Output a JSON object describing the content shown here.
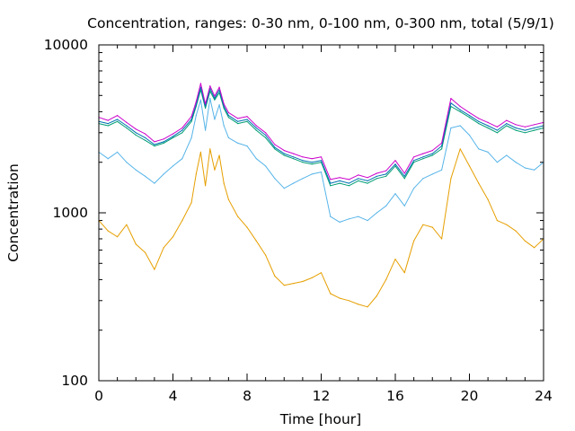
{
  "chart_data": {
    "type": "line",
    "title": "Concentration, ranges: 0-30 nm, 0-100 nm, 0-300 nm, total (5/9/1)",
    "xlabel": "Time [hour]",
    "ylabel": "Concentration",
    "xlim": [
      0,
      24
    ],
    "ylim": [
      100,
      10000
    ],
    "yscale": "log",
    "x_ticks": [
      0,
      4,
      8,
      12,
      16,
      20,
      24
    ],
    "x_tick_labels": [
      "0",
      "4",
      "8",
      "12",
      "16",
      "20",
      "24"
    ],
    "y_ticks": [
      100,
      1000,
      10000
    ],
    "y_tick_labels": [
      "100",
      "1000",
      "10000"
    ],
    "grid": false,
    "legend": "none",
    "x": [
      0,
      0.5,
      1,
      1.5,
      2,
      2.5,
      3,
      3.5,
      4,
      4.5,
      5,
      5.25,
      5.5,
      5.75,
      6,
      6.25,
      6.5,
      6.75,
      7,
      7.5,
      8,
      8.5,
      9,
      9.5,
      10,
      10.5,
      11,
      11.5,
      12,
      12.5,
      13,
      13.5,
      14,
      14.5,
      15,
      15.5,
      16,
      16.5,
      17,
      17.5,
      18,
      18.5,
      19,
      19.5,
      20,
      20.5,
      21,
      21.5,
      22,
      22.5,
      23,
      23.5,
      24
    ],
    "series": [
      {
        "color": "#e69f00",
        "values": [
          900,
          780,
          720,
          850,
          650,
          580,
          460,
          620,
          720,
          900,
          1150,
          1700,
          2300,
          1450,
          2400,
          1800,
          2200,
          1500,
          1200,
          950,
          820,
          680,
          560,
          420,
          370,
          380,
          390,
          410,
          440,
          330,
          310,
          300,
          285,
          275,
          320,
          400,
          530,
          440,
          680,
          850,
          820,
          700,
          1600,
          2400,
          1900,
          1500,
          1200,
          900,
          850,
          780,
          680,
          620,
          700
        ]
      },
      {
        "color": "#56b4e9",
        "values": [
          2300,
          2100,
          2300,
          2000,
          1800,
          1650,
          1500,
          1700,
          1900,
          2100,
          2800,
          3800,
          4700,
          3100,
          4800,
          3600,
          4400,
          3300,
          2800,
          2600,
          2500,
          2100,
          1900,
          1600,
          1400,
          1500,
          1600,
          1700,
          1750,
          950,
          880,
          920,
          950,
          900,
          1000,
          1100,
          1300,
          1100,
          1400,
          1600,
          1700,
          1800,
          3200,
          3300,
          2900,
          2400,
          2300,
          2000,
          2200,
          2000,
          1850,
          1800,
          2000
        ]
      },
      {
        "color": "#009e73",
        "values": [
          3400,
          3300,
          3500,
          3200,
          2900,
          2700,
          2500,
          2600,
          2800,
          3000,
          3500,
          4300,
          5400,
          4200,
          5300,
          4700,
          5200,
          4200,
          3700,
          3400,
          3500,
          3100,
          2800,
          2400,
          2200,
          2100,
          2000,
          1950,
          2000,
          1450,
          1500,
          1450,
          1550,
          1500,
          1600,
          1650,
          1900,
          1600,
          2000,
          2100,
          2200,
          2400,
          4300,
          4000,
          3700,
          3400,
          3200,
          3000,
          3300,
          3100,
          3000,
          3100,
          3200
        ]
      },
      {
        "color": "#0072b2",
        "values": [
          3500,
          3400,
          3600,
          3300,
          3000,
          2800,
          2550,
          2650,
          2850,
          3100,
          3600,
          4400,
          5600,
          4300,
          5500,
          4800,
          5400,
          4300,
          3800,
          3500,
          3600,
          3200,
          2900,
          2450,
          2250,
          2150,
          2050,
          2000,
          2050,
          1500,
          1550,
          1500,
          1600,
          1550,
          1650,
          1700,
          1950,
          1650,
          2050,
          2150,
          2250,
          2500,
          4500,
          4100,
          3800,
          3500,
          3300,
          3100,
          3400,
          3200,
          3100,
          3200,
          3300
        ]
      },
      {
        "color": "#cc00cc",
        "values": [
          3700,
          3550,
          3800,
          3450,
          3150,
          2950,
          2650,
          2750,
          2950,
          3200,
          3750,
          4600,
          5900,
          4450,
          5700,
          4950,
          5600,
          4450,
          3950,
          3650,
          3750,
          3300,
          3000,
          2550,
          2350,
          2250,
          2150,
          2100,
          2150,
          1580,
          1620,
          1580,
          1680,
          1620,
          1720,
          1780,
          2050,
          1720,
          2150,
          2250,
          2350,
          2600,
          4800,
          4300,
          3950,
          3650,
          3450,
          3250,
          3550,
          3350,
          3250,
          3350,
          3450
        ]
      }
    ]
  }
}
